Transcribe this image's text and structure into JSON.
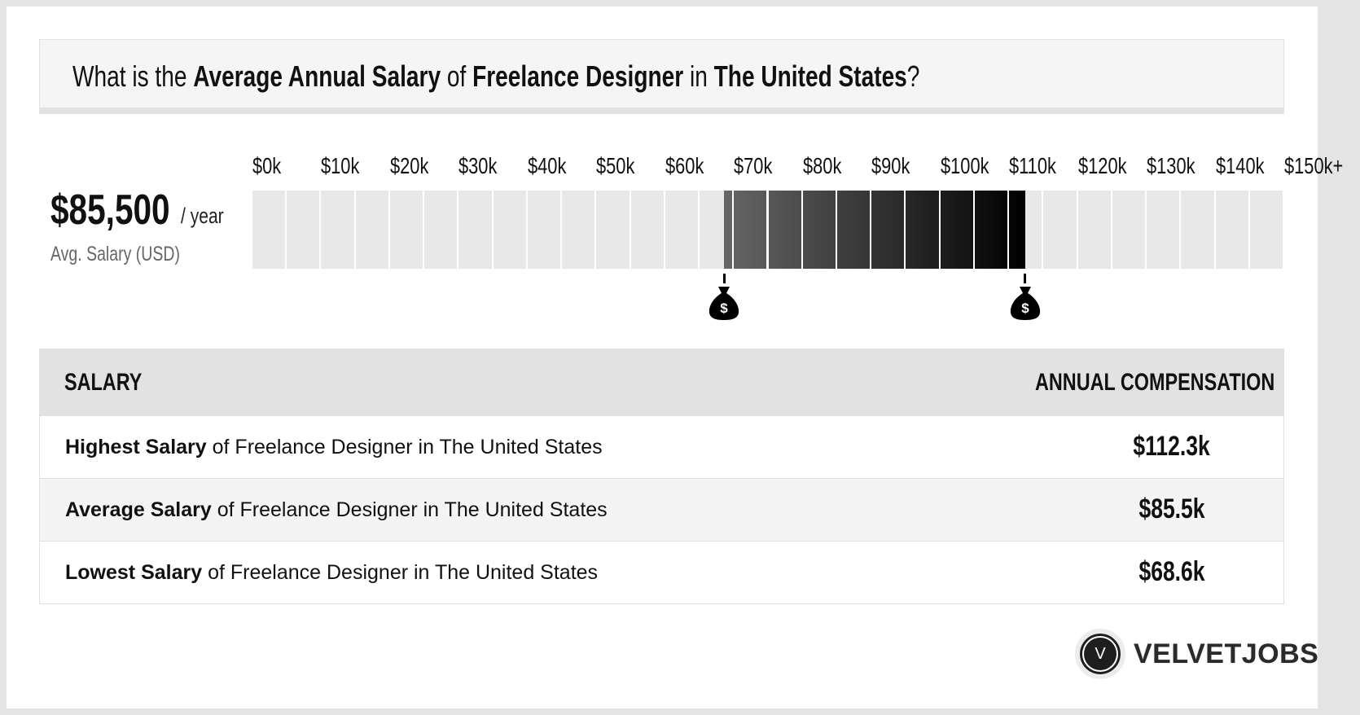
{
  "title": {
    "p1": "What is the ",
    "b1": "Average Annual Salary",
    "p2": " of ",
    "b2": "Freelance Designer",
    "p3": " in ",
    "b3": "The United States",
    "p4": "?"
  },
  "summary": {
    "value": "$85,500",
    "unit": "/ year",
    "label": "Avg. Salary (USD)"
  },
  "range_chart": {
    "tick_labels": [
      "$0k",
      "$10k",
      "$20k",
      "$30k",
      "$40k",
      "$50k",
      "$60k",
      "$70k",
      "$80k",
      "$90k",
      "$100k",
      "$110k",
      "$120k",
      "$130k",
      "$140k",
      "$150k+"
    ],
    "min_k": 0,
    "max_k": 150,
    "segment_step_k": 5,
    "low_k": 68.6,
    "high_k": 112.3,
    "colors": {
      "empty": "#e8e8e8",
      "fill_start": "#666666",
      "fill_end": "#000000"
    },
    "marker_icon": "money-bag-icon"
  },
  "table": {
    "headers": [
      "SALARY",
      "ANNUAL COMPENSATION"
    ],
    "rows": [
      {
        "bold": "Highest Salary",
        "rest": " of Freelance Designer in The United States",
        "value": "$112.3k"
      },
      {
        "bold": "Average Salary",
        "rest": " of Freelance Designer in The United States",
        "value": "$85.5k"
      },
      {
        "bold": "Lowest Salary",
        "rest": " of Freelance Designer in The United States",
        "value": "$68.6k"
      }
    ]
  },
  "logo": {
    "letter": "V",
    "text": "VELVETJOBS"
  }
}
